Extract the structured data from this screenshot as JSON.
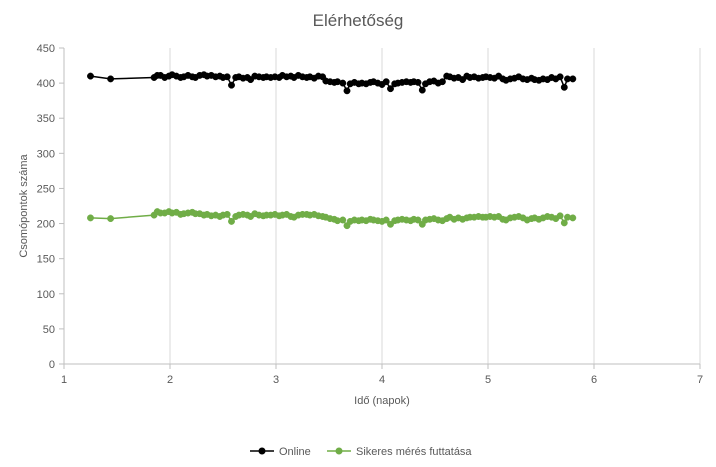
{
  "chart_data": {
    "type": "scatter",
    "title": "Elérhetőség",
    "xlabel": "Idő (napok)",
    "ylabel": "Csomópontok száma",
    "xlim": [
      1,
      7
    ],
    "ylim": [
      0,
      450
    ],
    "xticks": [
      1,
      2,
      3,
      4,
      5,
      6,
      7
    ],
    "yticks": [
      0,
      50,
      100,
      150,
      200,
      250,
      300,
      350,
      400,
      450
    ],
    "grid": "vertical",
    "legend_position": "bottom",
    "markers": "circle",
    "lines": true,
    "series": [
      {
        "name": "Online",
        "color": "#000000",
        "points": [
          [
            1.25,
            410
          ],
          [
            1.44,
            406
          ],
          [
            1.85,
            408
          ],
          [
            1.88,
            411
          ],
          [
            1.91,
            411
          ],
          [
            1.95,
            408
          ],
          [
            1.99,
            410
          ],
          [
            2.02,
            412
          ],
          [
            2.06,
            410
          ],
          [
            2.1,
            408
          ],
          [
            2.13,
            409
          ],
          [
            2.17,
            411
          ],
          [
            2.21,
            409
          ],
          [
            2.24,
            408
          ],
          [
            2.28,
            411
          ],
          [
            2.32,
            412
          ],
          [
            2.35,
            410
          ],
          [
            2.39,
            411
          ],
          [
            2.43,
            409
          ],
          [
            2.47,
            410
          ],
          [
            2.5,
            408
          ],
          [
            2.54,
            409
          ],
          [
            2.58,
            397
          ],
          [
            2.62,
            408
          ],
          [
            2.65,
            409
          ],
          [
            2.69,
            407
          ],
          [
            2.73,
            408
          ],
          [
            2.76,
            405
          ],
          [
            2.8,
            410
          ],
          [
            2.84,
            409
          ],
          [
            2.88,
            408
          ],
          [
            2.91,
            409
          ],
          [
            2.95,
            408
          ],
          [
            2.99,
            409
          ],
          [
            3.03,
            408
          ],
          [
            3.06,
            411
          ],
          [
            3.1,
            409
          ],
          [
            3.14,
            410
          ],
          [
            3.17,
            408
          ],
          [
            3.21,
            411
          ],
          [
            3.25,
            409
          ],
          [
            3.29,
            408
          ],
          [
            3.32,
            409
          ],
          [
            3.36,
            407
          ],
          [
            3.4,
            410
          ],
          [
            3.44,
            409
          ],
          [
            3.47,
            403
          ],
          [
            3.51,
            402
          ],
          [
            3.55,
            401
          ],
          [
            3.58,
            402
          ],
          [
            3.63,
            400
          ],
          [
            3.67,
            389
          ],
          [
            3.7,
            399
          ],
          [
            3.74,
            401
          ],
          [
            3.78,
            399
          ],
          [
            3.81,
            400
          ],
          [
            3.85,
            399
          ],
          [
            3.89,
            401
          ],
          [
            3.92,
            402
          ],
          [
            3.96,
            400
          ],
          [
            4.0,
            398
          ],
          [
            4.04,
            402
          ],
          [
            4.08,
            392
          ],
          [
            4.12,
            399
          ],
          [
            4.15,
            400
          ],
          [
            4.19,
            401
          ],
          [
            4.23,
            402
          ],
          [
            4.27,
            401
          ],
          [
            4.3,
            402
          ],
          [
            4.34,
            401
          ],
          [
            4.38,
            390
          ],
          [
            4.41,
            399
          ],
          [
            4.45,
            402
          ],
          [
            4.49,
            403
          ],
          [
            4.53,
            400
          ],
          [
            4.57,
            402
          ],
          [
            4.61,
            410
          ],
          [
            4.64,
            409
          ],
          [
            4.68,
            407
          ],
          [
            4.72,
            408
          ],
          [
            4.76,
            405
          ],
          [
            4.8,
            410
          ],
          [
            4.83,
            408
          ],
          [
            4.87,
            409
          ],
          [
            4.91,
            407
          ],
          [
            4.95,
            408
          ],
          [
            4.98,
            409
          ],
          [
            5.02,
            408
          ],
          [
            5.06,
            407
          ],
          [
            5.1,
            410
          ],
          [
            5.14,
            406
          ],
          [
            5.17,
            404
          ],
          [
            5.21,
            406
          ],
          [
            5.25,
            407
          ],
          [
            5.29,
            409
          ],
          [
            5.33,
            406
          ],
          [
            5.37,
            405
          ],
          [
            5.41,
            407
          ],
          [
            5.44,
            405
          ],
          [
            5.48,
            404
          ],
          [
            5.52,
            406
          ],
          [
            5.56,
            405
          ],
          [
            5.6,
            408
          ],
          [
            5.64,
            406
          ],
          [
            5.68,
            409
          ],
          [
            5.72,
            394
          ],
          [
            5.75,
            406
          ],
          [
            5.8,
            406
          ]
        ]
      },
      {
        "name": "Sikeres mérés futtatása",
        "color": "#70ad47",
        "points": [
          [
            1.25,
            208
          ],
          [
            1.44,
            207
          ],
          [
            1.85,
            212
          ],
          [
            1.88,
            217
          ],
          [
            1.91,
            215
          ],
          [
            1.95,
            215
          ],
          [
            1.99,
            217
          ],
          [
            2.02,
            215
          ],
          [
            2.06,
            216
          ],
          [
            2.1,
            213
          ],
          [
            2.13,
            214
          ],
          [
            2.17,
            215
          ],
          [
            2.21,
            216
          ],
          [
            2.24,
            214
          ],
          [
            2.28,
            214
          ],
          [
            2.32,
            212
          ],
          [
            2.35,
            213
          ],
          [
            2.39,
            211
          ],
          [
            2.43,
            212
          ],
          [
            2.47,
            210
          ],
          [
            2.5,
            212
          ],
          [
            2.54,
            213
          ],
          [
            2.58,
            203
          ],
          [
            2.62,
            210
          ],
          [
            2.65,
            212
          ],
          [
            2.69,
            213
          ],
          [
            2.73,
            212
          ],
          [
            2.76,
            210
          ],
          [
            2.8,
            214
          ],
          [
            2.84,
            212
          ],
          [
            2.88,
            211
          ],
          [
            2.91,
            212
          ],
          [
            2.95,
            212
          ],
          [
            2.99,
            213
          ],
          [
            3.03,
            211
          ],
          [
            3.06,
            212
          ],
          [
            3.1,
            213
          ],
          [
            3.14,
            210
          ],
          [
            3.17,
            209
          ],
          [
            3.21,
            212
          ],
          [
            3.25,
            213
          ],
          [
            3.29,
            213
          ],
          [
            3.32,
            212
          ],
          [
            3.36,
            213
          ],
          [
            3.4,
            211
          ],
          [
            3.44,
            210
          ],
          [
            3.47,
            209
          ],
          [
            3.51,
            207
          ],
          [
            3.55,
            206
          ],
          [
            3.58,
            204
          ],
          [
            3.63,
            205
          ],
          [
            3.67,
            197
          ],
          [
            3.7,
            203
          ],
          [
            3.74,
            205
          ],
          [
            3.78,
            204
          ],
          [
            3.81,
            205
          ],
          [
            3.85,
            204
          ],
          [
            3.89,
            206
          ],
          [
            3.92,
            205
          ],
          [
            3.96,
            204
          ],
          [
            4.0,
            203
          ],
          [
            4.04,
            205
          ],
          [
            4.08,
            199
          ],
          [
            4.12,
            204
          ],
          [
            4.15,
            205
          ],
          [
            4.19,
            206
          ],
          [
            4.23,
            205
          ],
          [
            4.27,
            204
          ],
          [
            4.3,
            206
          ],
          [
            4.34,
            205
          ],
          [
            4.38,
            199
          ],
          [
            4.41,
            205
          ],
          [
            4.45,
            206
          ],
          [
            4.49,
            207
          ],
          [
            4.53,
            205
          ],
          [
            4.57,
            204
          ],
          [
            4.61,
            207
          ],
          [
            4.64,
            209
          ],
          [
            4.68,
            206
          ],
          [
            4.72,
            208
          ],
          [
            4.76,
            206
          ],
          [
            4.8,
            208
          ],
          [
            4.83,
            209
          ],
          [
            4.87,
            209
          ],
          [
            4.91,
            210
          ],
          [
            4.95,
            209
          ],
          [
            4.98,
            209
          ],
          [
            5.02,
            210
          ],
          [
            5.06,
            209
          ],
          [
            5.1,
            210
          ],
          [
            5.14,
            206
          ],
          [
            5.17,
            205
          ],
          [
            5.21,
            208
          ],
          [
            5.25,
            209
          ],
          [
            5.29,
            210
          ],
          [
            5.33,
            208
          ],
          [
            5.37,
            205
          ],
          [
            5.41,
            207
          ],
          [
            5.44,
            208
          ],
          [
            5.48,
            206
          ],
          [
            5.52,
            208
          ],
          [
            5.56,
            210
          ],
          [
            5.6,
            209
          ],
          [
            5.64,
            207
          ],
          [
            5.68,
            211
          ],
          [
            5.72,
            201
          ],
          [
            5.75,
            209
          ],
          [
            5.8,
            208
          ]
        ]
      }
    ]
  }
}
